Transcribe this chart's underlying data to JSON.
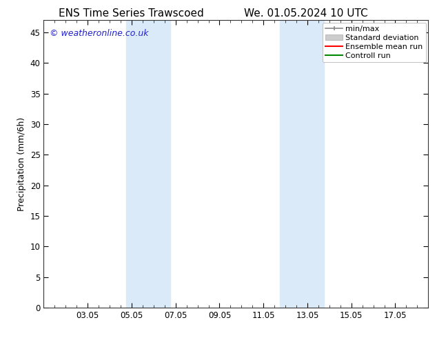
{
  "title_left": "ENS Time Series Trawscoed",
  "title_right": "We. 01.05.2024 10 UTC",
  "ylabel": "Precipitation (mm/6h)",
  "ylim": [
    0,
    47
  ],
  "yticks": [
    0,
    5,
    10,
    15,
    20,
    25,
    30,
    35,
    40,
    45
  ],
  "xtick_labels": [
    "03.05",
    "05.05",
    "07.05",
    "09.05",
    "11.05",
    "13.05",
    "15.05",
    "17.05"
  ],
  "xtick_positions": [
    2,
    4,
    6,
    8,
    10,
    12,
    14,
    16
  ],
  "xlim": [
    0,
    17.5
  ],
  "watermark": "© weatheronline.co.uk",
  "bg_color": "#ffffff",
  "plot_bg_color": "#ffffff",
  "shaded_bands": [
    {
      "x_start": 3.75,
      "x_end": 5.75,
      "color": "#daeaf8"
    },
    {
      "x_start": 10.75,
      "x_end": 12.75,
      "color": "#daeaf8"
    }
  ],
  "legend_items": [
    {
      "label": "min/max",
      "color": "#999999",
      "style": "minmax"
    },
    {
      "label": "Standard deviation",
      "color": "#cccccc",
      "style": "stddev"
    },
    {
      "label": "Ensemble mean run",
      "color": "#ff0000",
      "style": "line"
    },
    {
      "label": "Controll run",
      "color": "#008800",
      "style": "line"
    }
  ],
  "title_fontsize": 11,
  "label_fontsize": 9,
  "tick_fontsize": 8.5,
  "legend_fontsize": 8,
  "watermark_color": "#2222cc",
  "watermark_fontsize": 9
}
